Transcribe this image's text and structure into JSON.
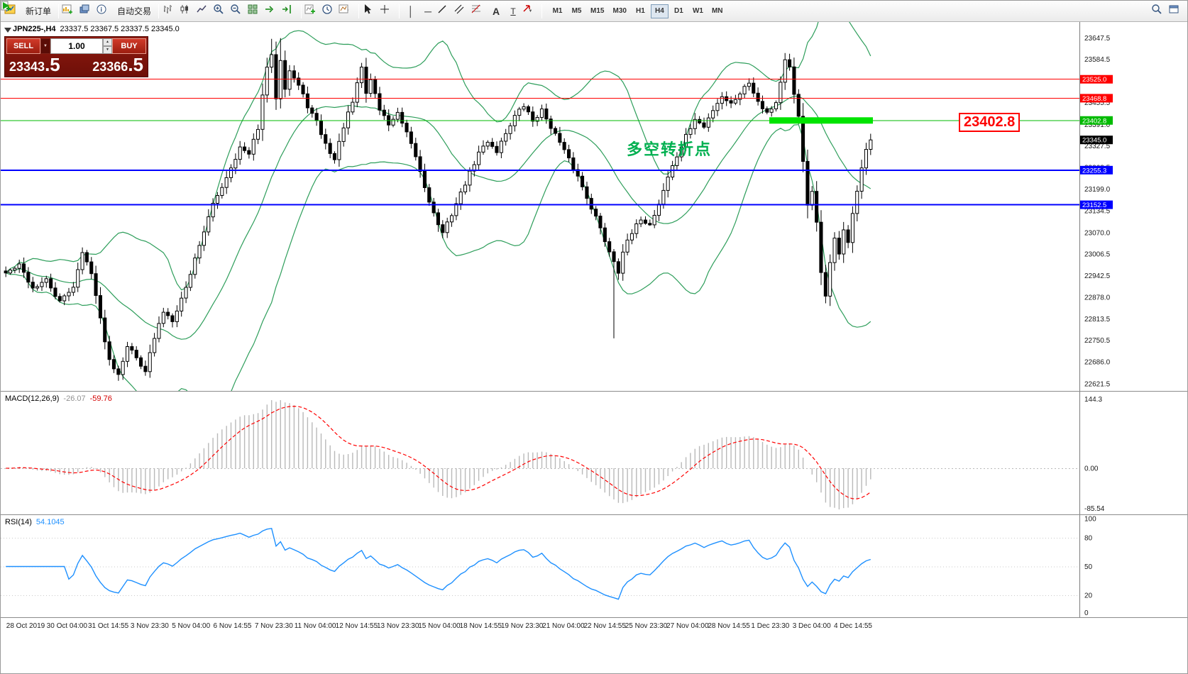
{
  "toolbar": {
    "new_order_label": "新订单",
    "autotrading_label": "自动交易",
    "timeframes": [
      "M1",
      "M5",
      "M15",
      "M30",
      "H1",
      "H4",
      "D1",
      "W1",
      "MN"
    ],
    "active_timeframe": "H4"
  },
  "trade_panel": {
    "sell_label": "SELL",
    "buy_label": "BUY",
    "volume": "1.00",
    "sell_price_main": "23343",
    "sell_price_pips": ".5",
    "buy_price_main": "23366",
    "buy_price_pips": ".5"
  },
  "icons": {
    "toolbar": [
      "app-icon",
      "new-order-icon",
      "new-chart-icon",
      "profiles-icon",
      "data-window-icon",
      "autotrading-play-icon",
      "bars-chart-icon",
      "candlestick-chart-icon",
      "line-chart-icon",
      "zoom-in-icon",
      "zoom-out-icon",
      "tile-windows-icon",
      "auto-scroll-icon",
      "chart-shift-icon",
      "indicators-icon",
      "periods-icon",
      "templates-icon",
      "cursor-icon",
      "crosshair-icon",
      "vertical-line-icon",
      "horizontal-line-icon",
      "trendline-icon",
      "channel-icon",
      "fibonacci-icon",
      "text-icon",
      "text-label-icon",
      "arrow-tool-icon",
      "search-icon",
      "window-icon"
    ],
    "trade_panel": [
      "volume-dropdown-icon",
      "volume-up-icon",
      "volume-down-icon"
    ],
    "chart": [
      "one-click-toggle-icon"
    ]
  },
  "chart_data": [
    {
      "type": "candlestick",
      "header": "JPN225-,H4",
      "ohlc_text": "23337.5 23367.5 23337.5 23345.0",
      "ohlc": {
        "open": 23337.5,
        "high": 23367.5,
        "low": 23337.5,
        "close": 23345.0
      },
      "y_range": [
        22600,
        23695
      ],
      "y_ticks": [
        23647.5,
        23584.5,
        23521.5,
        23455.5,
        23391.0,
        23327.5,
        23263.5,
        23199.0,
        23134.5,
        23070.0,
        23006.5,
        22942.5,
        22878.0,
        22813.5,
        22750.5,
        22686.0,
        22621.5
      ],
      "x_labels": [
        "28 Oct 2019",
        "30 Oct 04:00",
        "31 Oct 14:55",
        "3 Nov 23:30",
        "5 Nov 04:00",
        "6 Nov 14:55",
        "7 Nov 23:30",
        "11 Nov 04:00",
        "12 Nov 14:55",
        "13 Nov 23:30",
        "15 Nov 04:00",
        "18 Nov 14:55",
        "19 Nov 23:30",
        "21 Nov 04:00",
        "22 Nov 14:55",
        "25 Nov 23:30",
        "27 Nov 04:00",
        "28 Nov 14:55",
        "1 Dec 23:30",
        "3 Dec 04:00",
        "4 Dec 14:55"
      ],
      "close_waypoints": [
        [
          0,
          22950
        ],
        [
          3,
          22972
        ],
        [
          6,
          22905
        ],
        [
          9,
          22928
        ],
        [
          12,
          22862
        ],
        [
          15,
          22912
        ],
        [
          17,
          23008
        ],
        [
          19,
          22955
        ],
        [
          21,
          22812
        ],
        [
          23,
          22692
        ],
        [
          25,
          22652
        ],
        [
          27,
          22736
        ],
        [
          29,
          22698
        ],
        [
          31,
          22662
        ],
        [
          33,
          22756
        ],
        [
          35,
          22836
        ],
        [
          37,
          22812
        ],
        [
          40,
          22906
        ],
        [
          43,
          23036
        ],
        [
          46,
          23152
        ],
        [
          49,
          23236
        ],
        [
          52,
          23322
        ],
        [
          54,
          23300
        ],
        [
          56,
          23382
        ],
        [
          58,
          23562
        ],
        [
          59,
          23592
        ],
        [
          60,
          23472
        ],
        [
          61,
          23586
        ],
        [
          62,
          23502
        ],
        [
          63,
          23552
        ],
        [
          65,
          23506
        ],
        [
          67,
          23446
        ],
        [
          69,
          23396
        ],
        [
          71,
          23332
        ],
        [
          73,
          23286
        ],
        [
          75,
          23386
        ],
        [
          77,
          23456
        ],
        [
          79,
          23562
        ],
        [
          80,
          23482
        ],
        [
          81,
          23526
        ],
        [
          83,
          23436
        ],
        [
          85,
          23392
        ],
        [
          87,
          23422
        ],
        [
          89,
          23362
        ],
        [
          91,
          23296
        ],
        [
          93,
          23206
        ],
        [
          95,
          23126
        ],
        [
          97,
          23066
        ],
        [
          99,
          23126
        ],
        [
          101,
          23186
        ],
        [
          103,
          23246
        ],
        [
          105,
          23306
        ],
        [
          107,
          23342
        ],
        [
          109,
          23312
        ],
        [
          111,
          23366
        ],
        [
          113,
          23416
        ],
        [
          115,
          23446
        ],
        [
          117,
          23402
        ],
        [
          119,
          23432
        ],
        [
          121,
          23386
        ],
        [
          123,
          23336
        ],
        [
          125,
          23286
        ],
        [
          127,
          23236
        ],
        [
          129,
          23176
        ],
        [
          131,
          23116
        ],
        [
          133,
          23046
        ],
        [
          135,
          22986
        ],
        [
          136,
          22956
        ],
        [
          137,
          23016
        ],
        [
          139,
          23066
        ],
        [
          141,
          23112
        ],
        [
          143,
          23092
        ],
        [
          145,
          23156
        ],
        [
          147,
          23236
        ],
        [
          149,
          23296
        ],
        [
          151,
          23356
        ],
        [
          153,
          23406
        ],
        [
          155,
          23382
        ],
        [
          157,
          23436
        ],
        [
          159,
          23476
        ],
        [
          161,
          23452
        ],
        [
          163,
          23486
        ],
        [
          165,
          23516
        ],
        [
          167,
          23462
        ],
        [
          169,
          23426
        ],
        [
          171,
          23456
        ],
        [
          173,
          23580
        ],
        [
          174,
          23556
        ],
        [
          175,
          23476
        ],
        [
          176,
          23416
        ],
        [
          177,
          23286
        ],
        [
          178,
          23146
        ],
        [
          179,
          23192
        ],
        [
          180,
          23096
        ],
        [
          181,
          22946
        ],
        [
          182,
          22882
        ],
        [
          183,
          22986
        ],
        [
          184,
          23052
        ],
        [
          185,
          23002
        ],
        [
          186,
          23082
        ],
        [
          187,
          23042
        ],
        [
          188,
          23126
        ],
        [
          189,
          23186
        ],
        [
          190,
          23262
        ],
        [
          191,
          23312
        ],
        [
          192,
          23345
        ]
      ],
      "wick_overrides": [
        {
          "bar": 25,
          "low": 22630
        },
        {
          "bar": 31,
          "low": 22645
        },
        {
          "bar": 59,
          "high": 23645
        },
        {
          "bar": 61,
          "high": 23647
        },
        {
          "bar": 135,
          "low": 22756
        },
        {
          "bar": 182,
          "low": 22860
        }
      ],
      "overlays": {
        "bollinger": {
          "period": 20,
          "deviation": 2,
          "color": "#2e9e5b"
        }
      },
      "hlines": [
        {
          "price": 23525.0,
          "label": "23525.0",
          "color": "#ff0000",
          "width": 1
        },
        {
          "price": 23468.8,
          "label": "23468.8",
          "color": "#ff0000",
          "width": 1
        },
        {
          "price": 23402.8,
          "label": "23402.8",
          "color": "#00bb00",
          "width": 1,
          "thick_segment": {
            "from_bar": 170,
            "to_bar": 192,
            "height": 9,
            "color": "#00e400"
          }
        },
        {
          "price": 23255.3,
          "label": "23255.3",
          "color": "#0000ff",
          "width": 2
        },
        {
          "price": 23152.5,
          "label": "23152.5",
          "color": "#0000ff",
          "width": 2
        }
      ],
      "current_price": {
        "value": 23345.0,
        "label": "23345.0",
        "tag_color": "#000000"
      },
      "annotation": {
        "text": "多空转折点",
        "color": "#00b050"
      },
      "price_callout": {
        "text": "23402.8",
        "color": "#fe0000"
      },
      "candle_colors": {
        "bull": "#ffffff",
        "bear": "#000000",
        "outline": "#000000"
      }
    },
    {
      "type": "macd",
      "label": "MACD(12,26,9)",
      "value_main": "-26.07",
      "value_signal": "-59.76",
      "params": {
        "fast": 12,
        "slow": 26,
        "signal": 9
      },
      "scale": {
        "max": 144.3,
        "max_label": "144.3",
        "zero_label": "0.00",
        "min": -85.54,
        "min_label": "-85.54"
      },
      "colors": {
        "histogram": "#b9b9b9",
        "signal": "#ff0000"
      }
    },
    {
      "type": "rsi",
      "label": "RSI(14)",
      "value_text": "54.1045",
      "period": 14,
      "levels": [
        80,
        50,
        20
      ],
      "scale_labels": [
        "100",
        "80",
        "50",
        "20",
        "0"
      ],
      "range": [
        0,
        100
      ],
      "color": "#1e90ff"
    }
  ]
}
